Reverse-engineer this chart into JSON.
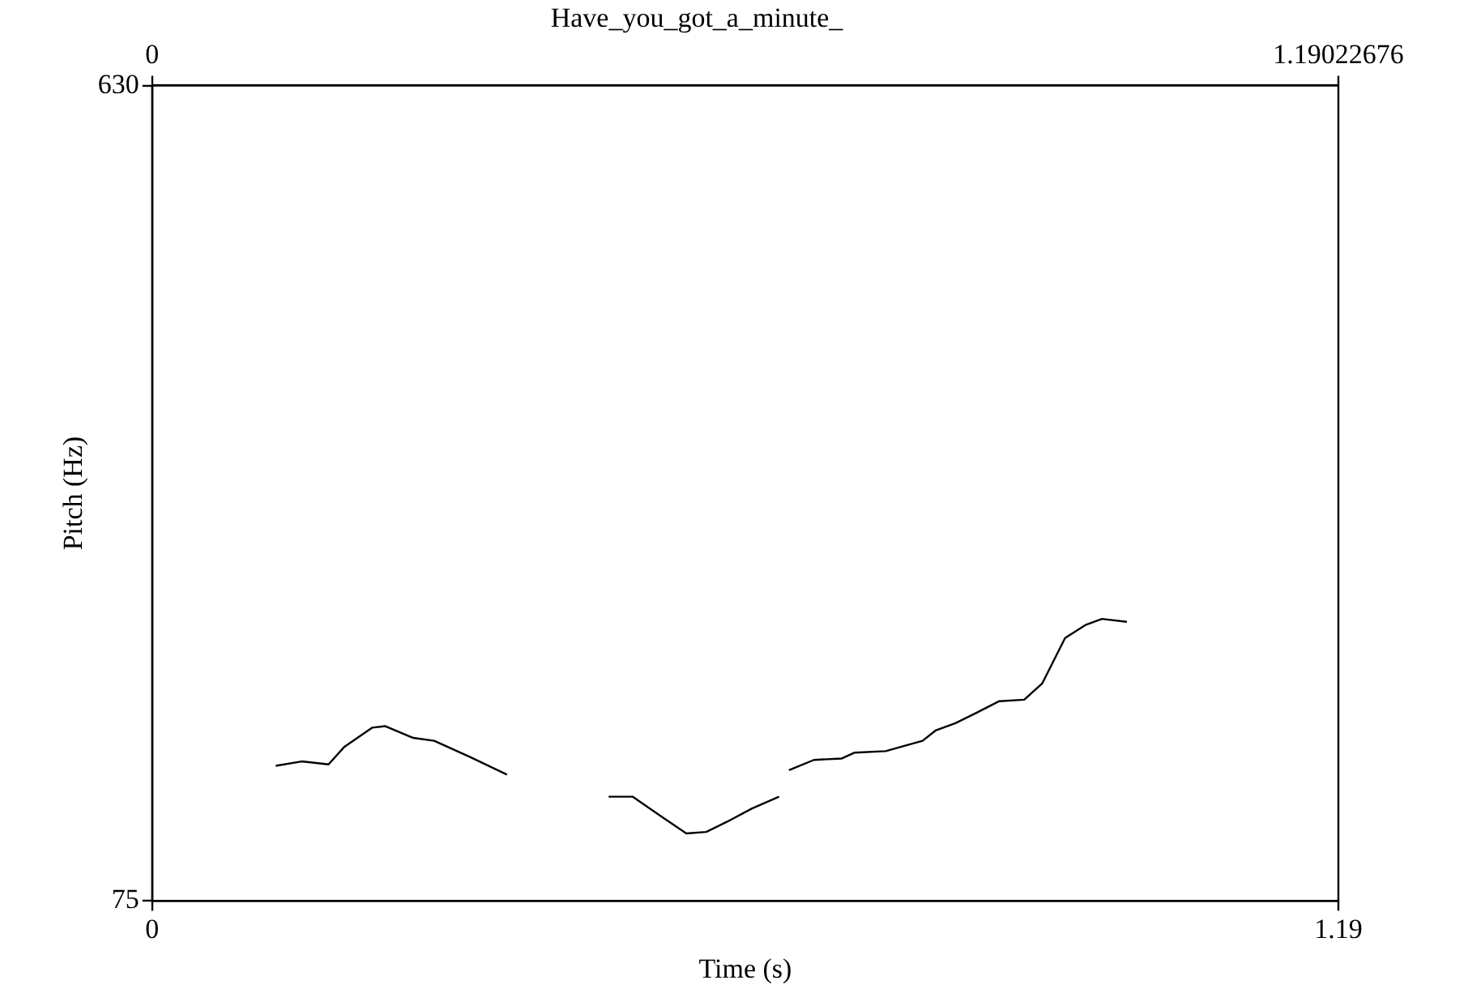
{
  "chart_data": {
    "type": "line",
    "title": "Have_you_got_a_minute_",
    "xlabel": "Time (s)",
    "ylabel": "Pitch (Hz)",
    "xlim": [
      0,
      1.19022676
    ],
    "xticks": [
      0,
      {
        "value": 1.19022676,
        "label": "1.19"
      }
    ],
    "x2lim": [
      0,
      1.19022676
    ],
    "x2ticks": [
      0,
      1.19022676
    ],
    "ylim": [
      75,
      630
    ],
    "yticks": [
      75,
      630
    ],
    "grid": false,
    "legend": false,
    "marker": "none",
    "line_style": "solid",
    "tick_labels": "xy",
    "series": [
      {
        "color": "#000000",
        "x": [
          0.124,
          0.15,
          0.177,
          0.193,
          0.221,
          0.234,
          0.262,
          0.283,
          0.319,
          0.356,
          0.4,
          0.458,
          0.482,
          0.512,
          0.536,
          0.556,
          0.577,
          0.602,
          0.629,
          0.634,
          0.639,
          0.664,
          0.692,
          0.705,
          0.736,
          0.757,
          0.773,
          0.786,
          0.806,
          0.827,
          0.85,
          0.875,
          0.893,
          0.916,
          0.937,
          0.953,
          0.978
        ],
        "values": [
          167,
          170,
          168,
          180,
          193,
          194,
          186,
          184,
          173,
          161,
          null,
          146,
          146,
          132,
          121,
          122,
          129,
          138,
          146,
          null,
          164,
          171,
          172,
          176,
          177,
          181,
          184,
          191,
          196,
          203,
          211,
          212,
          223,
          254,
          263,
          267,
          265
        ]
      }
    ]
  }
}
